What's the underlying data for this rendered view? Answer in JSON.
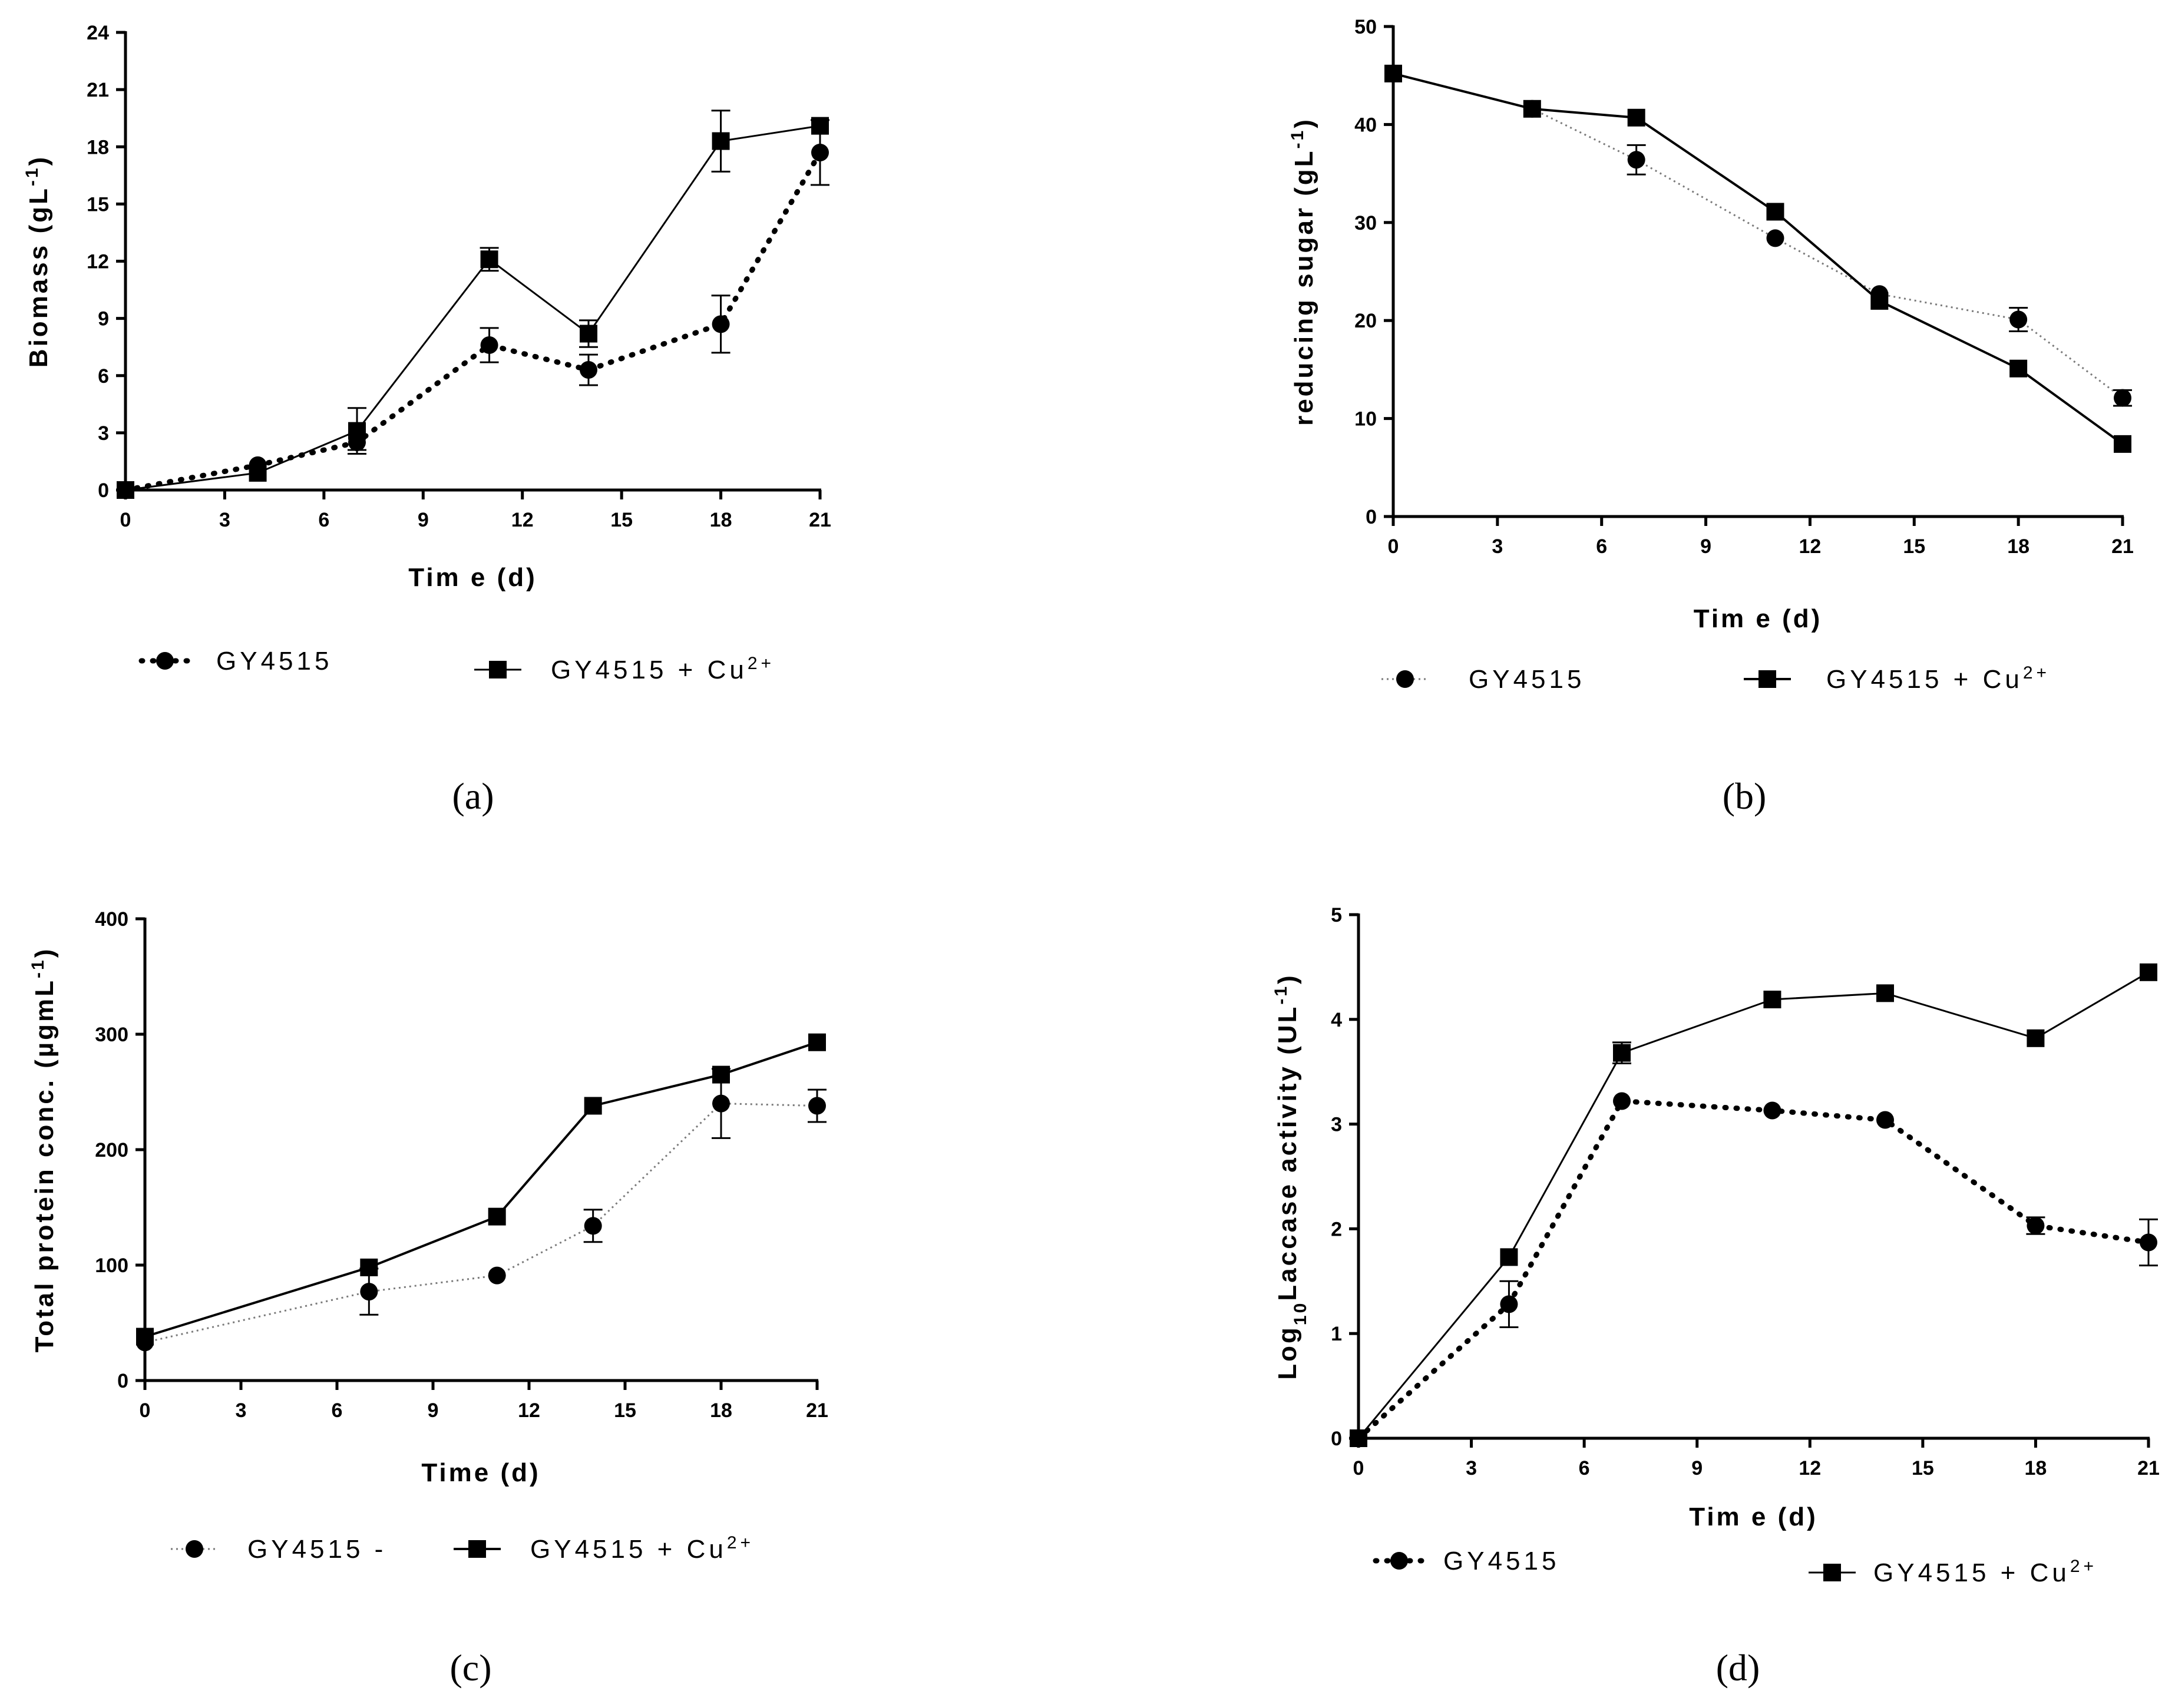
{
  "figure": {
    "panels": [
      "(a)",
      "(b)",
      "(c)",
      "(d)"
    ]
  },
  "colors": {
    "ink": "#000000",
    "dotted_line": "#7a7a7a"
  },
  "chart_data": [
    {
      "id": "a",
      "type": "line",
      "panel_label": "(a)",
      "xlabel": "Tim e (d)",
      "ylabel_main": "Biomass (gL",
      "ylabel_sup": "-1",
      "ylabel_end": ")",
      "xlim": [
        0,
        21
      ],
      "ylim": [
        0,
        24
      ],
      "xticks": [
        "0",
        "3",
        "6",
        "9",
        "12",
        "15",
        "18",
        "21"
      ],
      "yticks": [
        "0",
        "3",
        "6",
        "9",
        "12",
        "15",
        "18",
        "21",
        "24"
      ],
      "series": [
        {
          "name": "GY4515",
          "legend_main": "GY4515",
          "legend_sup": "",
          "marker": "circle",
          "line": "dotted-bold",
          "x": [
            0,
            4,
            7,
            11,
            14,
            18,
            21
          ],
          "y": [
            0,
            1.3,
            2.5,
            7.6,
            6.3,
            8.7,
            17.7
          ],
          "err": [
            0,
            0,
            0.4,
            0.9,
            0.8,
            1.5,
            1.7
          ]
        },
        {
          "name": "GY4515 + Cu2+",
          "legend_main": "GY4515 + Cu",
          "legend_sup": "2+",
          "marker": "square",
          "line": "solid",
          "x": [
            0,
            4,
            7,
            11,
            14,
            18,
            21
          ],
          "y": [
            0,
            0.9,
            3.1,
            12.1,
            8.2,
            18.3,
            19.1
          ],
          "err": [
            0,
            0,
            1.2,
            0.6,
            0.7,
            1.6,
            0
          ]
        }
      ]
    },
    {
      "id": "b",
      "type": "line",
      "panel_label": "(b)",
      "xlabel": "Tim e (d)",
      "ylabel_main": "reducing sugar (gL",
      "ylabel_sup": "-1",
      "ylabel_end": ")",
      "xlim": [
        0,
        21
      ],
      "ylim": [
        0,
        50
      ],
      "xticks": [
        "0",
        "3",
        "6",
        "9",
        "12",
        "15",
        "18",
        "21"
      ],
      "yticks": [
        "0",
        "10",
        "20",
        "30",
        "40",
        "50"
      ],
      "series": [
        {
          "name": "GY4515",
          "legend_main": "GY4515",
          "legend_sup": "",
          "marker": "circle",
          "line": "dotted-thin",
          "x": [
            0,
            4,
            7,
            11,
            14,
            18,
            21
          ],
          "y": [
            45.2,
            41.6,
            36.4,
            28.4,
            22.7,
            20.1,
            12.1
          ],
          "err": [
            0,
            0,
            1.5,
            0,
            0,
            1.2,
            0.8
          ]
        },
        {
          "name": "GY4515 + Cu2+",
          "legend_main": "GY4515 + Cu",
          "legend_sup": "2+",
          "marker": "square",
          "line": "solid",
          "x": [
            0,
            4,
            7,
            11,
            14,
            18,
            21
          ],
          "y": [
            45.2,
            41.6,
            40.7,
            31.1,
            22.0,
            15.1,
            7.4
          ],
          "err": [
            0,
            0,
            0,
            0,
            0,
            0,
            0
          ]
        }
      ]
    },
    {
      "id": "c",
      "type": "line",
      "panel_label": "(c)",
      "xlabel": "Time (d)",
      "ylabel_main": "Total protein conc. (µgmL",
      "ylabel_sup": "-1",
      "ylabel_end": ")",
      "xlim": [
        0,
        21
      ],
      "ylim": [
        0,
        400
      ],
      "xticks": [
        "0",
        "3",
        "6",
        "9",
        "12",
        "15",
        "18",
        "21"
      ],
      "yticks": [
        "0",
        "100",
        "200",
        "300",
        "400"
      ],
      "series": [
        {
          "name": "GY4515 -",
          "legend_main": "GY4515 -",
          "legend_sup": "",
          "marker": "circle",
          "line": "dotted-thin",
          "x": [
            0,
            7,
            11,
            14,
            18,
            21
          ],
          "y": [
            33,
            77,
            91,
            134,
            240,
            238
          ],
          "err": [
            0,
            20,
            0,
            14,
            30,
            14
          ]
        },
        {
          "name": "GY4515 + Cu2+",
          "legend_main": "GY4515 + Cu",
          "legend_sup": "2+",
          "marker": "square",
          "line": "solid",
          "x": [
            0,
            7,
            11,
            14,
            18,
            21
          ],
          "y": [
            38,
            98,
            142,
            238,
            265,
            293
          ],
          "err": [
            0,
            0,
            0,
            0,
            0,
            0
          ]
        }
      ]
    },
    {
      "id": "d",
      "type": "line",
      "panel_label": "(d)",
      "xlabel": "Tim e (d)",
      "ylabel_main": "Log",
      "ylabel_sub": "10",
      "ylabel_rest": "Laccase activity (UL",
      "ylabel_sup": "-1",
      "ylabel_end": ")",
      "xlim": [
        0,
        21
      ],
      "ylim": [
        0,
        5
      ],
      "xticks": [
        "0",
        "3",
        "6",
        "9",
        "12",
        "15",
        "18",
        "21"
      ],
      "yticks": [
        "0",
        "1",
        "2",
        "3",
        "4",
        "5"
      ],
      "series": [
        {
          "name": "GY4515",
          "legend_main": "GY4515",
          "legend_sup": "",
          "marker": "circle",
          "line": "dotted-bold",
          "x": [
            0,
            4,
            7,
            11,
            14,
            18,
            21
          ],
          "y": [
            0,
            1.28,
            3.22,
            3.13,
            3.04,
            2.03,
            1.87
          ],
          "err": [
            0,
            0.22,
            0,
            0,
            0,
            0.08,
            0.22
          ]
        },
        {
          "name": "GY4515 + Cu2+",
          "legend_main": "GY4515 + Cu",
          "legend_sup": "2+",
          "marker": "square",
          "line": "solid",
          "x": [
            0,
            4,
            7,
            11,
            14,
            18,
            21
          ],
          "y": [
            0,
            1.73,
            3.68,
            4.19,
            4.25,
            3.82,
            4.45
          ],
          "err": [
            0,
            0,
            0.1,
            0,
            0,
            0,
            0
          ]
        }
      ]
    }
  ]
}
